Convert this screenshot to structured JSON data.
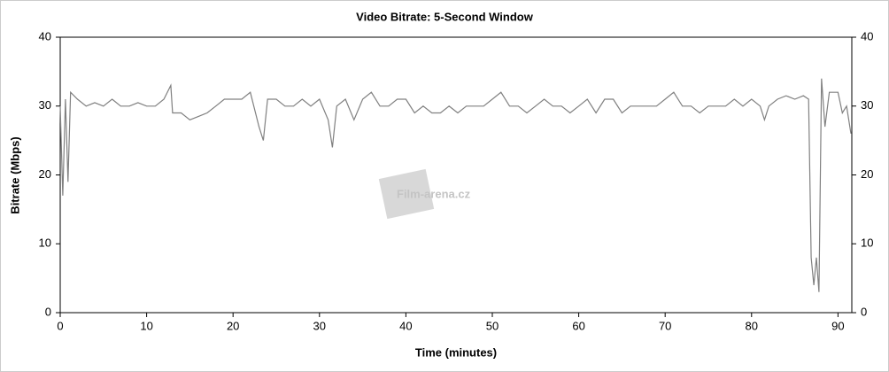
{
  "chart_data": {
    "type": "line",
    "title": "Video Bitrate: 5-Second Window",
    "xlabel": "Time (minutes)",
    "ylabel": "Bitrate (Mbps)",
    "watermark": "Film-arena.cz",
    "x": [
      0,
      0.3,
      0.6,
      0.9,
      1.2,
      2,
      3,
      4,
      5,
      6,
      7,
      8,
      9,
      10,
      11,
      12,
      12.8,
      13,
      14,
      15,
      16,
      17,
      18,
      19,
      20,
      21,
      22,
      23,
      23.5,
      24,
      25,
      26,
      27,
      28,
      29,
      30,
      31,
      31.5,
      32,
      33,
      34,
      35,
      36,
      37,
      38,
      39,
      40,
      41,
      42,
      43,
      44,
      45,
      46,
      47,
      48,
      49,
      50,
      51,
      52,
      53,
      54,
      55,
      56,
      57,
      58,
      59,
      60,
      61,
      62,
      63,
      64,
      65,
      66,
      67,
      68,
      69,
      70,
      71,
      72,
      73,
      74,
      75,
      76,
      77,
      78,
      79,
      80,
      81,
      81.5,
      82,
      83,
      84,
      85,
      86,
      86.6,
      86.9,
      87.2,
      87.5,
      87.8,
      88.1,
      88.5,
      89,
      90,
      90.5,
      91,
      91.5
    ],
    "series": [
      {
        "name": "Video Bitrate",
        "color": "#808080",
        "values": [
          30,
          17,
          31,
          19,
          32,
          31,
          30,
          30.5,
          30,
          31,
          30,
          30,
          30.5,
          30,
          30,
          31,
          33,
          29,
          29,
          28,
          28.5,
          29,
          30,
          31,
          31,
          31,
          32,
          27,
          25,
          31,
          31,
          30,
          30,
          31,
          30,
          31,
          28,
          24,
          30,
          31,
          28,
          31,
          32,
          30,
          30,
          31,
          31,
          29,
          30,
          29,
          29,
          30,
          29,
          30,
          30,
          30,
          31,
          32,
          30,
          30,
          29,
          30,
          31,
          30,
          30,
          29,
          30,
          31,
          29,
          31,
          31,
          29,
          30,
          30,
          30,
          30,
          31,
          32,
          30,
          30,
          29,
          30,
          30,
          30,
          31,
          30,
          31,
          30,
          28,
          30,
          31,
          31.5,
          31,
          31.5,
          31,
          8,
          4,
          8,
          3,
          34,
          27,
          32,
          32,
          29,
          30,
          26
        ]
      }
    ],
    "xlim": [
      0,
      91.6
    ],
    "xticks": [
      0,
      10,
      20,
      30,
      40,
      50,
      60,
      70,
      80,
      90
    ],
    "ylim": [
      0,
      40
    ],
    "yticks": [
      0,
      10,
      20,
      30,
      40
    ],
    "y2lim": [
      0,
      40
    ],
    "y2ticks": [
      0,
      10,
      20,
      30,
      40
    ]
  }
}
